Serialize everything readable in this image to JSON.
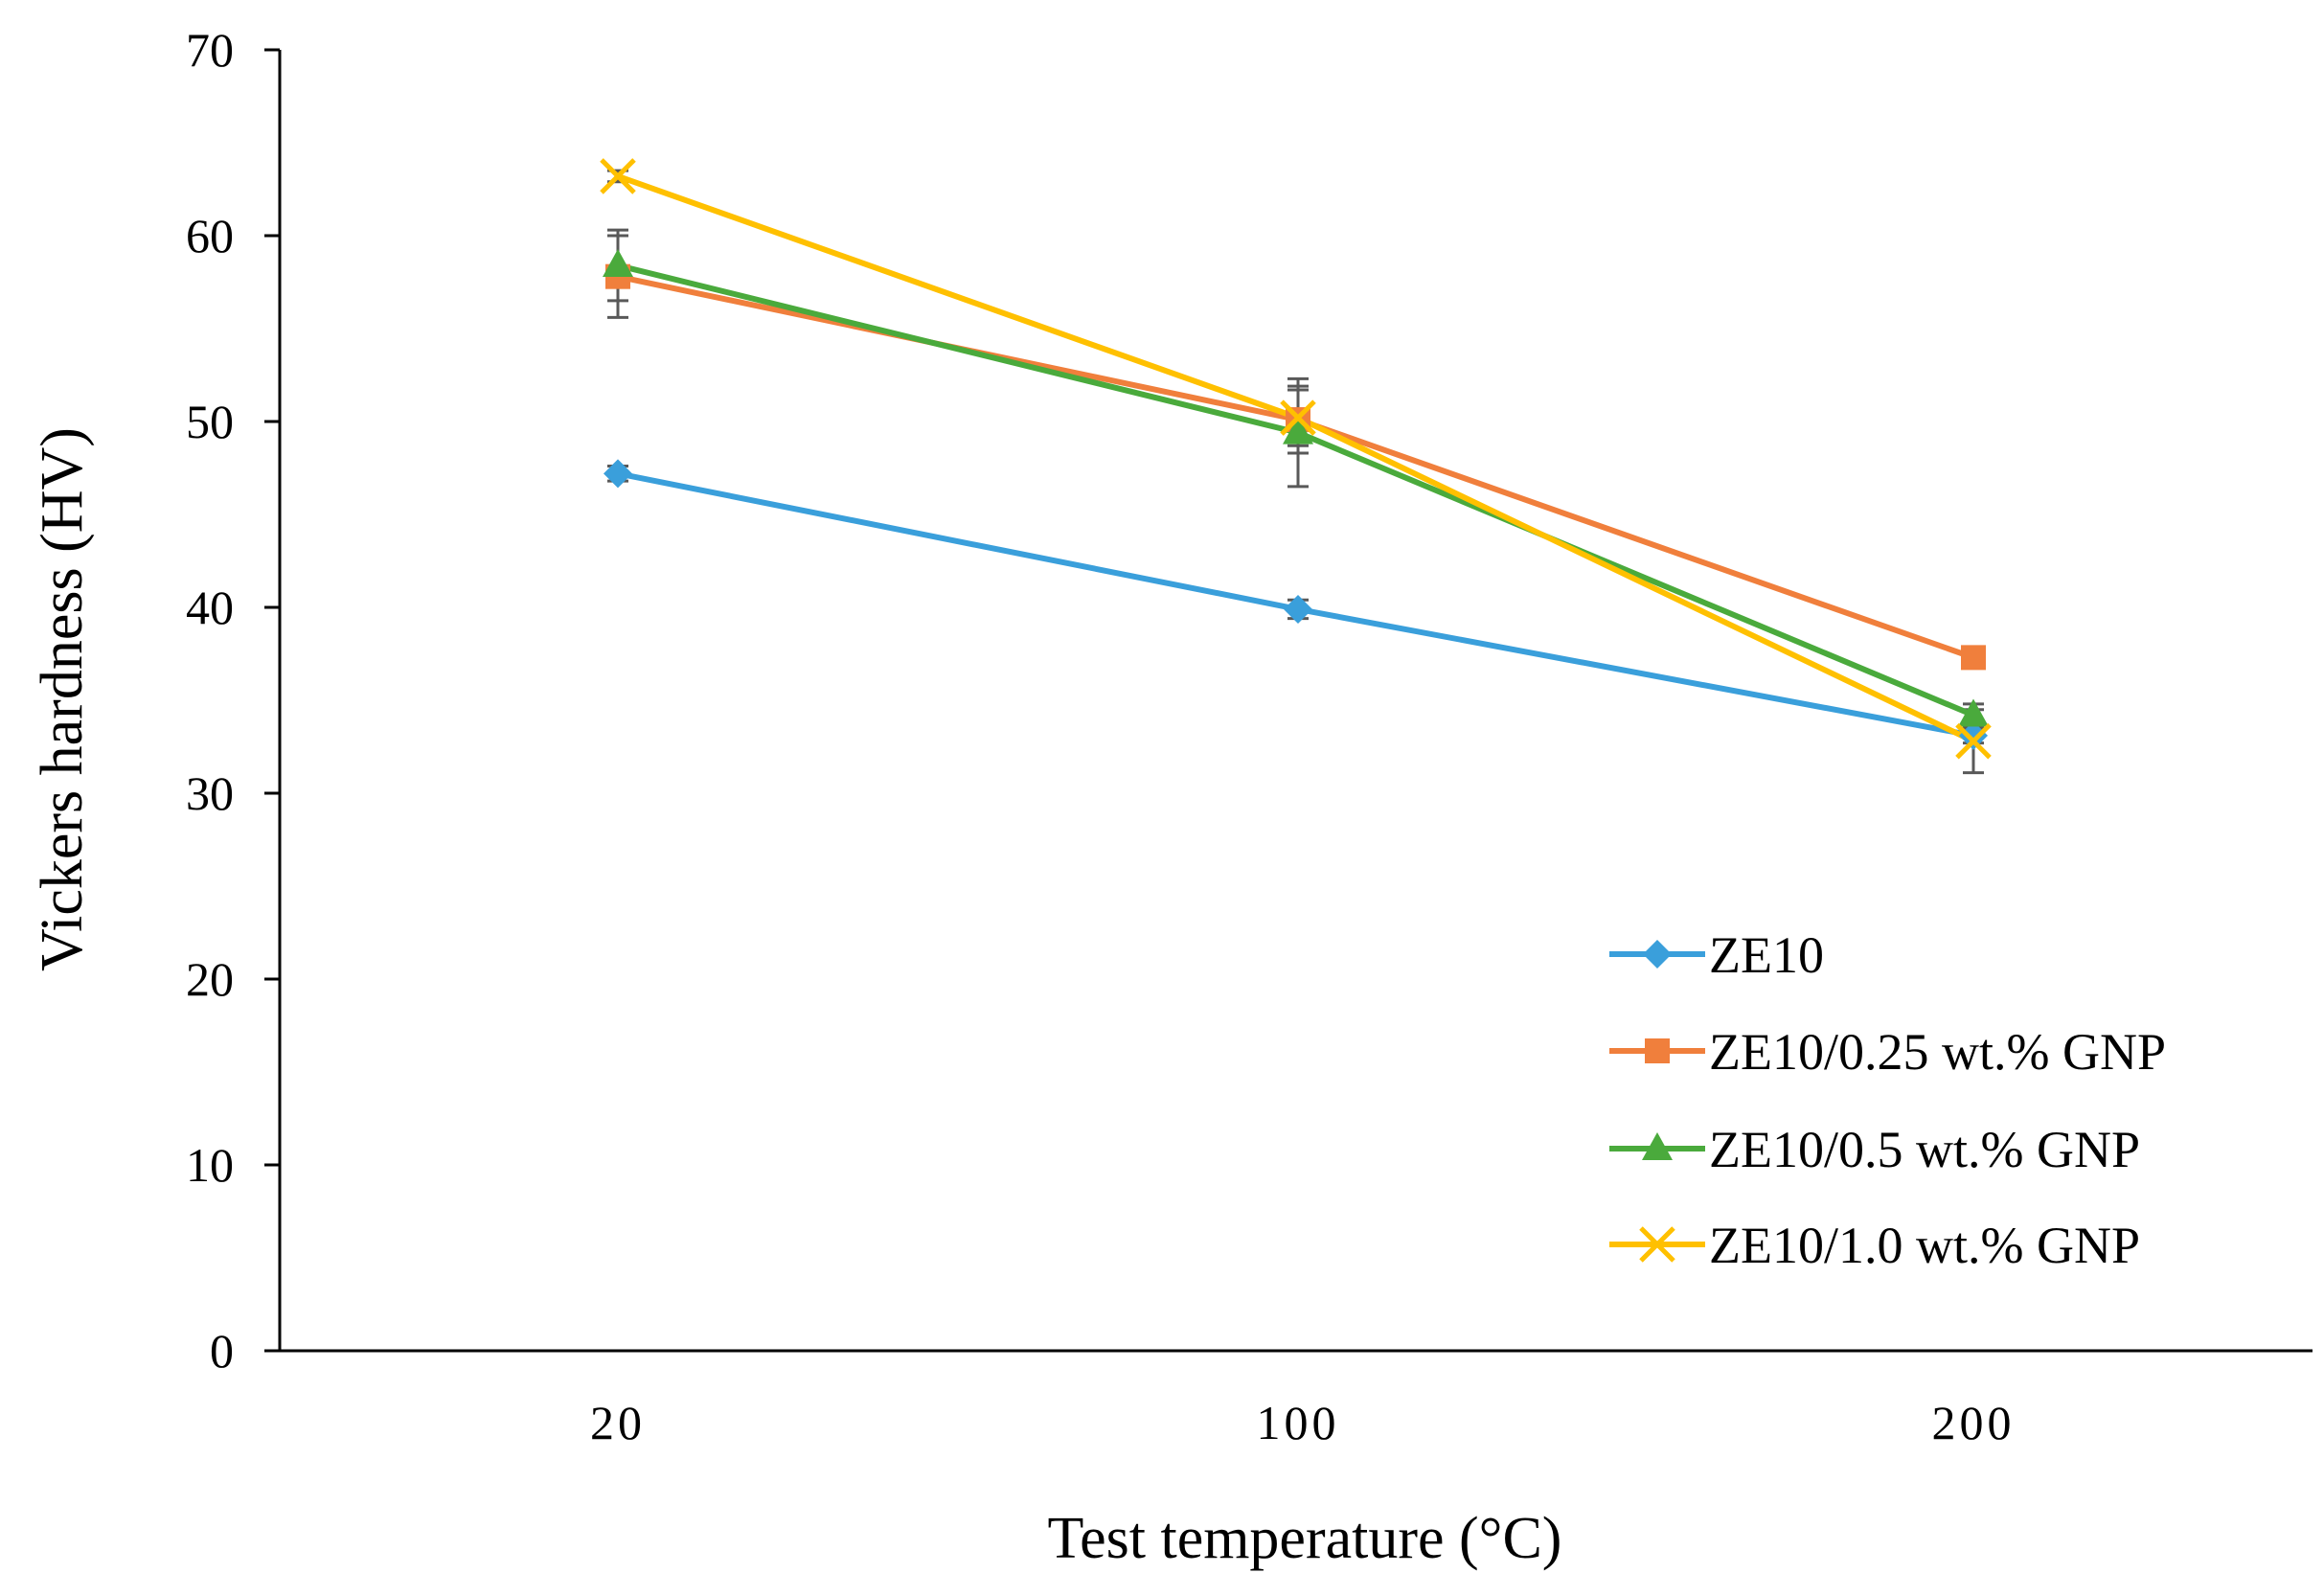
{
  "chart_data": {
    "type": "line",
    "title": "",
    "xlabel": "Test temperature (°C)",
    "ylabel": "Vickers hardness (HV)",
    "categories": [
      "20",
      "100",
      "200"
    ],
    "ylim": [
      0,
      70
    ],
    "yticks": [
      "0",
      "10",
      "20",
      "30",
      "40",
      "50",
      "60",
      "70"
    ],
    "grid": false,
    "legend_position": "bottom-right",
    "series": [
      {
        "name": "ZE10",
        "values": [
          47.2,
          39.9,
          33.1
        ],
        "errors": [
          0.4,
          0.5,
          0.4
        ],
        "marker": "diamond",
        "color": "#3A9FDB"
      },
      {
        "name": "ZE10/0.25 wt.% GNP",
        "values": [
          57.8,
          50.1,
          37.3
        ],
        "errors": [
          2.2,
          1.8,
          0.4
        ],
        "marker": "square",
        "color": "#F07F3C"
      },
      {
        "name": "ZE10/0.5 wt.% GNP",
        "values": [
          58.4,
          49.4,
          34.2
        ],
        "errors": [
          1.9,
          2.9,
          0.6
        ],
        "marker": "triangle",
        "color": "#4AAA3C"
      },
      {
        "name": "ZE10/1.0 wt.% GNP",
        "values": [
          63.2,
          50.2,
          32.8
        ],
        "errors": [
          0.3,
          1.5,
          1.7
        ],
        "marker": "x",
        "color": "#FFC000"
      }
    ]
  }
}
